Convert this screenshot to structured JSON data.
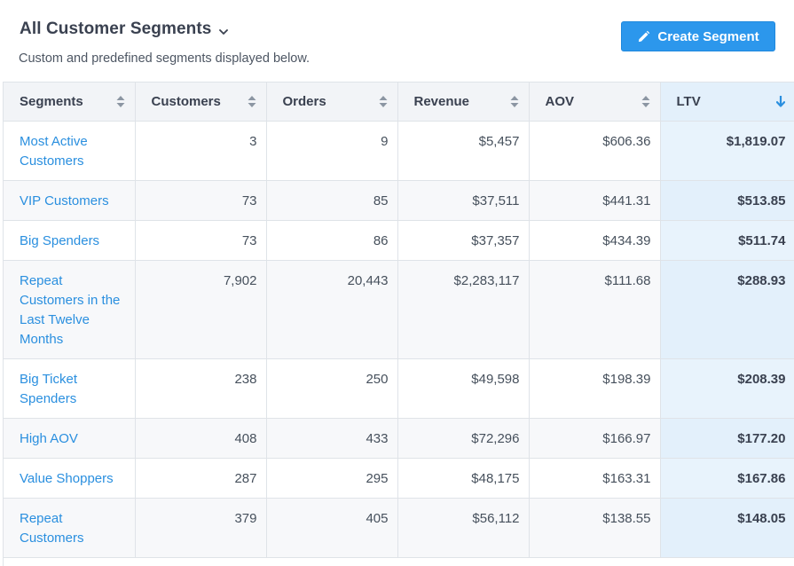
{
  "header": {
    "title": "All Customer Segments",
    "subtitle": "Custom and predefined segments displayed below.",
    "create_button": "Create Segment"
  },
  "table": {
    "columns": [
      "Segments",
      "Customers",
      "Orders",
      "Revenue",
      "AOV",
      "LTV"
    ],
    "sorted_column": "LTV",
    "sort_direction": "descending",
    "rows": [
      [
        "Most Active Customers",
        "3",
        "9",
        "$5,457",
        "$606.36",
        "$1,819.07"
      ],
      [
        "VIP Customers",
        "73",
        "85",
        "$37,511",
        "$441.31",
        "$513.85"
      ],
      [
        "Big Spenders",
        "73",
        "86",
        "$37,357",
        "$434.39",
        "$511.74"
      ],
      [
        "Repeat Customers in the Last Twelve Months",
        "7,902",
        "20,443",
        "$2,283,117",
        "$111.68",
        "$288.93"
      ],
      [
        "Big Ticket Spenders",
        "238",
        "250",
        "$49,598",
        "$198.39",
        "$208.39"
      ],
      [
        "High AOV",
        "408",
        "433",
        "$72,296",
        "$166.97",
        "$177.20"
      ],
      [
        "Value Shoppers",
        "287",
        "295",
        "$48,175",
        "$163.31",
        "$167.86"
      ],
      [
        "Repeat Customers",
        "379",
        "405",
        "$56,112",
        "$138.55",
        "$148.05"
      ]
    ]
  },
  "colors": {
    "accent": "#2c97ec",
    "link": "#2a8fdf",
    "active_column_bg": "#e3f0fb"
  },
  "icons": {
    "title_dropdown": "chevron-down-icon",
    "create_button": "pencil-icon",
    "sort_neutral": "sort-icon",
    "sort_active": "arrow-down-icon"
  }
}
